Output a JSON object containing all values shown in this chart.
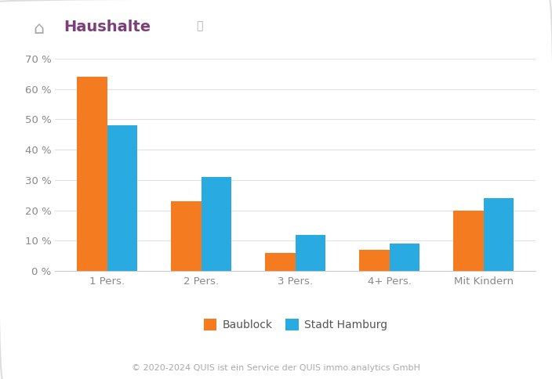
{
  "categories": [
    "1 Pers.",
    "2 Pers.",
    "3 Pers.",
    "4+ Pers.",
    "Mit Kindern"
  ],
  "baublock": [
    64,
    23,
    6,
    7,
    20
  ],
  "hamburg": [
    48,
    31,
    12,
    9,
    24
  ],
  "baublock_color": "#F47B20",
  "hamburg_color": "#29ABE2",
  "ylim": [
    0,
    70
  ],
  "yticks": [
    0,
    10,
    20,
    30,
    40,
    50,
    60,
    70
  ],
  "title": "Haushalte",
  "title_icon": "⌂",
  "legend_labels": [
    "Baublock",
    "Stadt Hamburg"
  ],
  "footer": "© 2020-2024 QUIS ist ein Service der QUIS immo.analytics GmbH",
  "background_color": "#ffffff",
  "grid_color": "#e0e0e8",
  "bar_width": 0.32,
  "title_color": "#7B3F7B",
  "icon_color": "#aaaaaa",
  "title_fontsize": 14,
  "tick_fontsize": 9.5,
  "legend_fontsize": 10,
  "footer_fontsize": 8,
  "footer_color": "#aaaaaa",
  "tick_color": "#888888",
  "spine_color": "#cccccc"
}
